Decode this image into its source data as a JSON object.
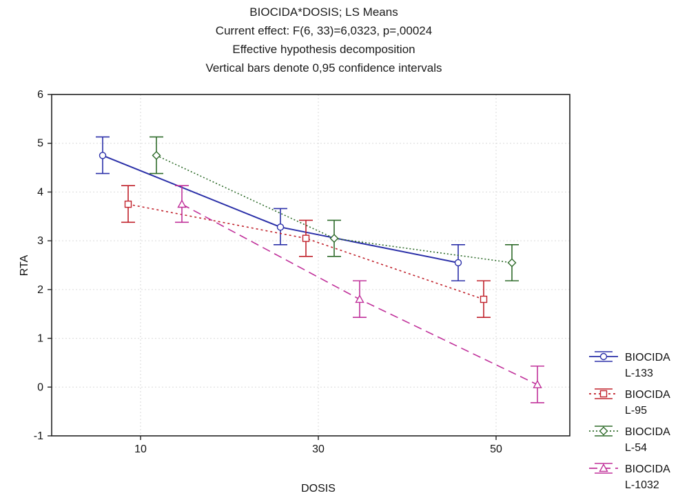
{
  "chart_data": {
    "type": "line",
    "title_lines": [
      "BIOCIDA*DOSIS; LS Means",
      "Current effect: F(6, 33)=6,0323, p=,00024",
      "Effective hypothesis decomposition",
      "Vertical bars denote 0,95 confidence intervals"
    ],
    "xlabel": "DOSIS",
    "ylabel": "RTA",
    "categories": [
      "10",
      "30",
      "50"
    ],
    "ylim": [
      -1,
      6
    ],
    "yticks": [
      -1,
      0,
      1,
      2,
      3,
      4,
      5,
      6
    ],
    "grid": true,
    "legend_position": "right",
    "series": [
      {
        "name_lines": [
          "BIOCIDA",
          "L-133"
        ],
        "color": "#2a2fa8",
        "marker": "circle",
        "line_style": "solid",
        "values": [
          4.75,
          3.28,
          2.55
        ],
        "ci_low": [
          4.38,
          2.92,
          2.18
        ],
        "ci_high": [
          5.13,
          3.66,
          2.92
        ]
      },
      {
        "name_lines": [
          "BIOCIDA",
          "L-95"
        ],
        "color": "#c0202a",
        "marker": "square",
        "line_style": "dotted",
        "values": [
          3.75,
          3.05,
          1.8
        ],
        "ci_low": [
          3.38,
          2.68,
          1.43
        ],
        "ci_high": [
          4.13,
          3.42,
          2.18
        ]
      },
      {
        "name_lines": [
          "BIOCIDA",
          "L-54"
        ],
        "color": "#2e6b2a",
        "marker": "diamond",
        "line_style": "dotted-fine",
        "values": [
          4.75,
          3.05,
          2.55
        ],
        "ci_low": [
          4.38,
          2.68,
          2.18
        ],
        "ci_high": [
          5.13,
          3.42,
          2.92
        ]
      },
      {
        "name_lines": [
          "BIOCIDA",
          "L-1032"
        ],
        "color": "#c0309a",
        "marker": "triangle",
        "line_style": "dashed",
        "values": [
          3.75,
          1.8,
          0.05
        ],
        "ci_low": [
          3.38,
          1.43,
          -0.32
        ],
        "ci_high": [
          4.13,
          2.18,
          0.43
        ]
      }
    ]
  }
}
